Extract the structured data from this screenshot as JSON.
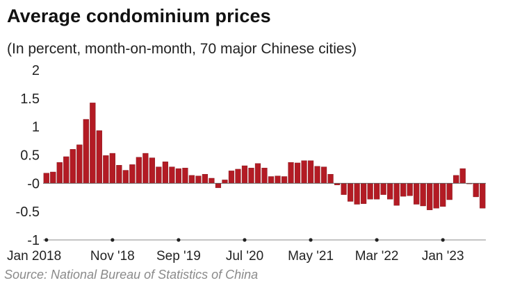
{
  "chart_data": {
    "type": "bar",
    "title": "Average condominium prices",
    "subtitle": "(In percent, month-on-month, 70 major Chinese cities)",
    "source": "Source: National Bureau of Statistics of China",
    "ylim": [
      -1,
      2
    ],
    "yticks": [
      "2",
      "1.5",
      "1",
      "0.5",
      "-0",
      "-0.5",
      "-1"
    ],
    "ytick_values": [
      2,
      1.5,
      1,
      0.5,
      0,
      -0.5,
      -1
    ],
    "x_tick_labels": [
      "Jan 2018",
      "Nov '18",
      "Sep '19",
      "Jul '20",
      "May '21",
      "Mar '22",
      "Jan '23"
    ],
    "x_tick_index": [
      0,
      10,
      20,
      30,
      40,
      50,
      60
    ],
    "grid": false,
    "colors": {
      "bar": "#b31b24",
      "bar_edge": "#7a1016",
      "axis": "#888888"
    },
    "values": [
      0.18,
      0.2,
      0.37,
      0.47,
      0.6,
      0.68,
      1.13,
      1.42,
      0.93,
      0.49,
      0.53,
      0.32,
      0.23,
      0.33,
      0.46,
      0.53,
      0.45,
      0.29,
      0.38,
      0.29,
      0.26,
      0.27,
      0.14,
      0.13,
      0.16,
      0.09,
      -0.08,
      0.06,
      0.22,
      0.25,
      0.31,
      0.27,
      0.35,
      0.27,
      0.12,
      0.13,
      0.12,
      0.37,
      0.36,
      0.4,
      0.4,
      0.3,
      0.29,
      0.16,
      -0.03,
      -0.2,
      -0.32,
      -0.37,
      -0.36,
      -0.28,
      -0.28,
      -0.2,
      -0.28,
      -0.39,
      -0.23,
      -0.22,
      -0.37,
      -0.4,
      -0.47,
      -0.44,
      -0.41,
      -0.29,
      0.14,
      0.26,
      -0.01,
      -0.24,
      -0.44
    ]
  }
}
